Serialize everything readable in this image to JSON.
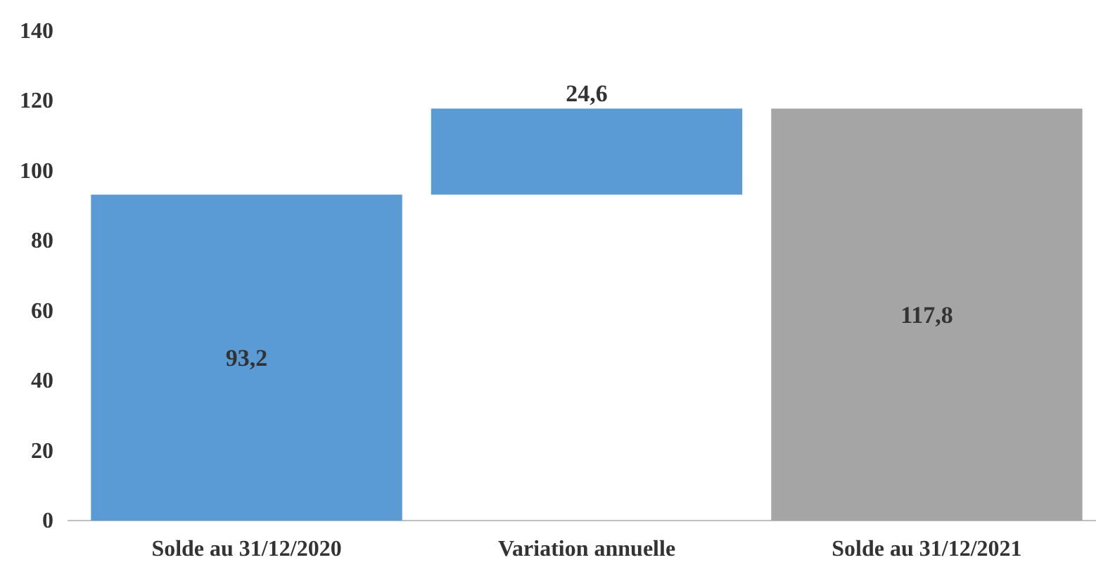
{
  "chart_data": {
    "type": "bar",
    "categories": [
      "Solde au 31/12/2020",
      "Variation annuelle",
      "Solde au 31/12/2021"
    ],
    "values": [
      93.2,
      24.6,
      117.8
    ],
    "base": [
      0,
      93.2,
      0
    ],
    "colors": [
      "#5b9bd5",
      "#5b9bd5",
      "#a5a5a5"
    ],
    "value_labels": [
      "93,2",
      "24,6",
      "117,8"
    ],
    "ylim": [
      0,
      140
    ],
    "yticks": [
      0,
      20,
      40,
      60,
      80,
      100,
      120,
      140
    ],
    "grid": false
  }
}
